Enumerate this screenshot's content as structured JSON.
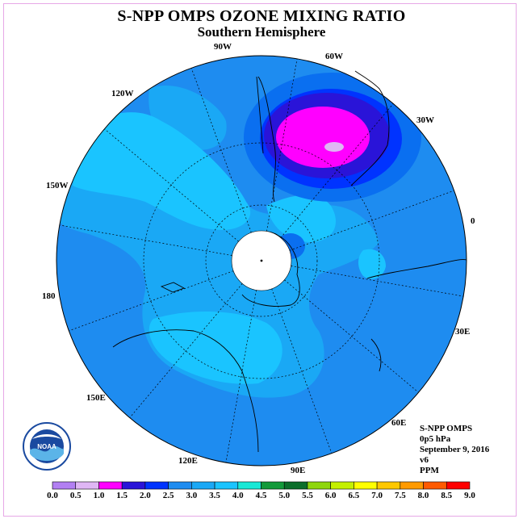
{
  "title": "S-NPP OMPS OZONE MIXING RATIO",
  "subtitle": "Southern Hemisphere",
  "longitude_labels": [
    "90W",
    "60W",
    "30W",
    "120W",
    "150W",
    "0",
    "180",
    "30E",
    "150E",
    "60E",
    "120E",
    "90E"
  ],
  "info": {
    "instrument": "S-NPP OMPS",
    "level": "0p5 hPa",
    "date": "September 9, 2016",
    "version": "v6",
    "units": "PPM"
  },
  "logo_text": "NOAA",
  "colorbar": {
    "labels": [
      "0.0",
      "0.5",
      "1.0",
      "1.5",
      "2.0",
      "2.5",
      "3.0",
      "3.5",
      "4.0",
      "4.5",
      "5.0",
      "5.5",
      "6.0",
      "6.5",
      "7.0",
      "7.5",
      "8.0",
      "8.5",
      "9.0"
    ],
    "colors": [
      "#b27ff2",
      "#dfb6f4",
      "#ff00ff",
      "#2a14d8",
      "#0033ff",
      "#1e8cf0",
      "#1aa8f5",
      "#1ac4ff",
      "#18e8d6",
      "#139a3a",
      "#0b6e2a",
      "#8ed60c",
      "#c4f000",
      "#ffff00",
      "#ffc800",
      "#ff9a00",
      "#ff5a00",
      "#ff0000",
      "#8c5a3c"
    ]
  },
  "colors": {
    "background_ocean": "#1e8cf0",
    "field_light": "#1ac4ff",
    "field_mid": "#1aa8f5",
    "field_dark": "#0050ff",
    "field_blue": "#2a14d8",
    "field_max": "#ff00ff",
    "field_peak": "#dfb6f4"
  }
}
